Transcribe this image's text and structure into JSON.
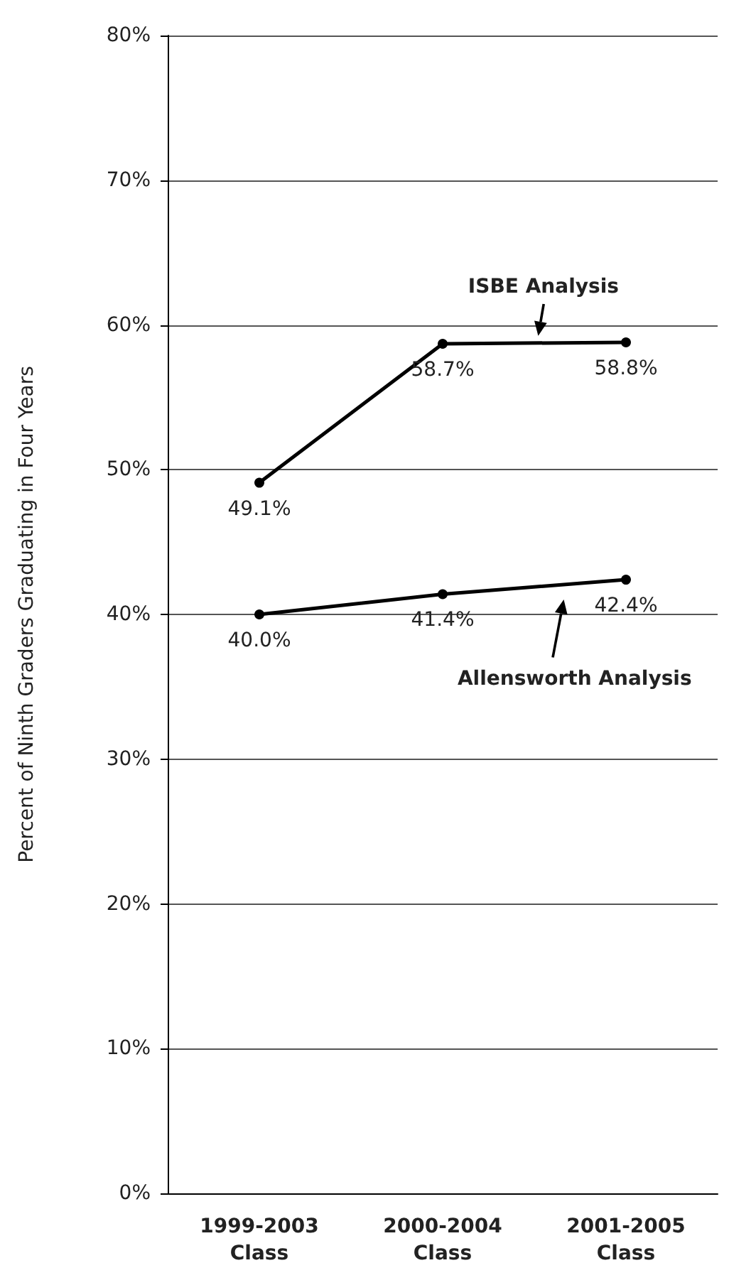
{
  "chart_data": {
    "type": "line",
    "ylabel": "Percent of Ninth Graders Graduating in Four Years",
    "categories": [
      "1999-2003\nClass",
      "2000-2004\nClass",
      "2001-2005\nClass"
    ],
    "series": [
      {
        "name": "ISBE Analysis",
        "color": "#000000",
        "values": [
          49.1,
          58.7,
          58.8
        ],
        "value_labels": [
          "49.1%",
          "58.7%",
          "58.8%"
        ]
      },
      {
        "name": "Allensworth Analysis",
        "color": "#000000",
        "values": [
          40.0,
          41.4,
          42.4
        ],
        "value_labels": [
          "40.0%",
          "41.4%",
          "42.4%"
        ]
      }
    ],
    "ylim": [
      0,
      80
    ],
    "yticks": [
      {
        "value": 0,
        "label": "0%"
      },
      {
        "value": 10,
        "label": "10%"
      },
      {
        "value": 20,
        "label": "20%"
      },
      {
        "value": 30,
        "label": "30%"
      },
      {
        "value": 40,
        "label": "40%"
      },
      {
        "value": 50,
        "label": "50%"
      },
      {
        "value": 60,
        "label": "60%"
      },
      {
        "value": 70,
        "label": "70%"
      },
      {
        "value": 80,
        "label": "80%"
      }
    ],
    "grid": "y",
    "marker": "circle",
    "line_style": "solid"
  }
}
